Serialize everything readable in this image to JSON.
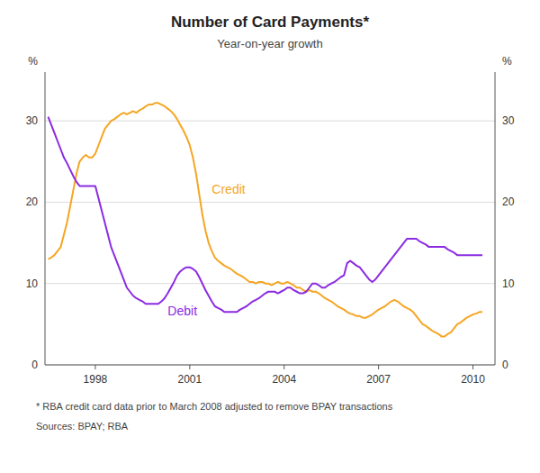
{
  "chart_data": {
    "type": "line",
    "title": "Number of Card Payments*",
    "subtitle": "Year-on-year growth",
    "y_label": "%",
    "y2_label": "%",
    "footnotes": [
      "*   RBA credit card data prior to March 2008 adjusted to remove BPAY transactions",
      "Sources: BPAY; RBA"
    ],
    "grid": true,
    "xlim": [
      1996.4,
      2010.7
    ],
    "xticks": [
      1998,
      2001,
      2004,
      2007,
      2010
    ],
    "ylim": [
      0,
      36
    ],
    "yticks": [
      0,
      10,
      20,
      30
    ],
    "y2lim": [
      0,
      36
    ],
    "y2ticks": [
      0,
      10,
      20,
      30
    ],
    "x": [
      1996.5,
      1996.6,
      1996.7,
      1996.8,
      1996.9,
      1997.0,
      1997.1,
      1997.2,
      1997.3,
      1997.4,
      1997.5,
      1997.6,
      1997.7,
      1997.8,
      1997.9,
      1998.0,
      1998.1,
      1998.2,
      1998.3,
      1998.4,
      1998.5,
      1998.6,
      1998.7,
      1998.8,
      1998.9,
      1999.0,
      1999.1,
      1999.2,
      1999.3,
      1999.4,
      1999.5,
      1999.6,
      1999.7,
      1999.8,
      1999.9,
      2000.0,
      2000.1,
      2000.2,
      2000.3,
      2000.4,
      2000.5,
      2000.6,
      2000.7,
      2000.8,
      2000.9,
      2001.0,
      2001.1,
      2001.2,
      2001.3,
      2001.4,
      2001.5,
      2001.6,
      2001.7,
      2001.8,
      2001.9,
      2002.0,
      2002.1,
      2002.2,
      2002.3,
      2002.4,
      2002.5,
      2002.6,
      2002.7,
      2002.8,
      2002.9,
      2003.0,
      2003.1,
      2003.2,
      2003.3,
      2003.4,
      2003.5,
      2003.6,
      2003.7,
      2003.8,
      2003.9,
      2004.0,
      2004.1,
      2004.2,
      2004.3,
      2004.4,
      2004.5,
      2004.6,
      2004.7,
      2004.8,
      2004.9,
      2005.0,
      2005.1,
      2005.2,
      2005.3,
      2005.4,
      2005.5,
      2005.6,
      2005.7,
      2005.8,
      2005.9,
      2006.0,
      2006.1,
      2006.2,
      2006.3,
      2006.4,
      2006.5,
      2006.6,
      2006.7,
      2006.8,
      2006.9,
      2007.0,
      2007.1,
      2007.2,
      2007.3,
      2007.4,
      2007.5,
      2007.6,
      2007.7,
      2007.8,
      2007.9,
      2008.0,
      2008.1,
      2008.2,
      2008.3,
      2008.4,
      2008.5,
      2008.6,
      2008.7,
      2008.8,
      2008.9,
      2009.0,
      2009.1,
      2009.2,
      2009.3,
      2009.4,
      2009.5,
      2009.6,
      2009.7,
      2009.8,
      2009.9,
      2010.0,
      2010.1,
      2010.2,
      2010.3
    ],
    "series": [
      {
        "name": "Credit",
        "color": "#F5A623",
        "values": [
          13.0,
          13.2,
          13.5,
          14.0,
          14.5,
          16.0,
          17.5,
          19.5,
          21.5,
          23.5,
          25.0,
          25.5,
          25.8,
          25.5,
          25.5,
          26.0,
          27.0,
          28.0,
          29.0,
          29.5,
          30.0,
          30.2,
          30.5,
          30.8,
          31.0,
          30.8,
          31.0,
          31.2,
          31.0,
          31.3,
          31.5,
          31.8,
          32.0,
          32.0,
          32.2,
          32.2,
          32.0,
          31.8,
          31.5,
          31.2,
          30.8,
          30.2,
          29.5,
          28.8,
          28.0,
          27.0,
          25.5,
          23.5,
          21.0,
          18.5,
          16.5,
          15.0,
          14.0,
          13.2,
          12.8,
          12.5,
          12.2,
          12.0,
          11.8,
          11.5,
          11.2,
          11.0,
          10.8,
          10.5,
          10.2,
          10.2,
          10.0,
          10.2,
          10.2,
          10.0,
          10.0,
          9.8,
          10.0,
          10.2,
          10.0,
          10.0,
          10.2,
          10.0,
          9.8,
          9.5,
          9.5,
          9.2,
          9.0,
          9.2,
          9.0,
          9.0,
          8.8,
          8.5,
          8.2,
          8.0,
          7.8,
          7.5,
          7.2,
          7.0,
          6.8,
          6.5,
          6.3,
          6.2,
          6.0,
          6.0,
          5.8,
          5.8,
          6.0,
          6.2,
          6.5,
          6.8,
          7.0,
          7.2,
          7.5,
          7.8,
          8.0,
          7.8,
          7.5,
          7.2,
          7.0,
          6.8,
          6.5,
          6.0,
          5.5,
          5.0,
          4.8,
          4.5,
          4.2,
          4.0,
          3.8,
          3.5,
          3.5,
          3.8,
          4.0,
          4.5,
          5.0,
          5.2,
          5.5,
          5.8,
          6.0,
          6.2,
          6.3,
          6.5,
          6.5
        ]
      },
      {
        "name": "Debit",
        "color": "#8B2BE2",
        "values": [
          30.5,
          29.5,
          28.5,
          27.5,
          26.5,
          25.5,
          24.8,
          24.0,
          23.2,
          22.5,
          22.0,
          22.0,
          22.0,
          22.0,
          22.0,
          22.0,
          20.5,
          19.0,
          17.5,
          16.0,
          14.5,
          13.5,
          12.5,
          11.5,
          10.5,
          9.5,
          9.0,
          8.5,
          8.2,
          8.0,
          7.8,
          7.5,
          7.5,
          7.5,
          7.5,
          7.5,
          7.8,
          8.2,
          8.8,
          9.5,
          10.2,
          11.0,
          11.5,
          11.8,
          12.0,
          12.0,
          11.8,
          11.5,
          10.8,
          10.0,
          9.2,
          8.5,
          7.8,
          7.2,
          7.0,
          6.8,
          6.5,
          6.5,
          6.5,
          6.5,
          6.5,
          6.8,
          7.0,
          7.2,
          7.5,
          7.8,
          8.0,
          8.2,
          8.5,
          8.8,
          9.0,
          9.0,
          9.0,
          8.8,
          9.0,
          9.2,
          9.5,
          9.5,
          9.2,
          9.0,
          8.8,
          8.8,
          9.0,
          9.5,
          10.0,
          10.0,
          9.8,
          9.5,
          9.5,
          9.8,
          10.0,
          10.2,
          10.5,
          10.8,
          11.0,
          12.5,
          12.8,
          12.5,
          12.2,
          12.0,
          11.5,
          11.0,
          10.5,
          10.2,
          10.5,
          11.0,
          11.5,
          12.0,
          12.5,
          13.0,
          13.5,
          14.0,
          14.5,
          15.0,
          15.5,
          15.5,
          15.5,
          15.5,
          15.2,
          15.0,
          14.8,
          14.5,
          14.5,
          14.5,
          14.5,
          14.5,
          14.5,
          14.2,
          14.0,
          13.8,
          13.5,
          13.5,
          13.5,
          13.5,
          13.5,
          13.5,
          13.5,
          13.5,
          13.5
        ]
      }
    ]
  }
}
